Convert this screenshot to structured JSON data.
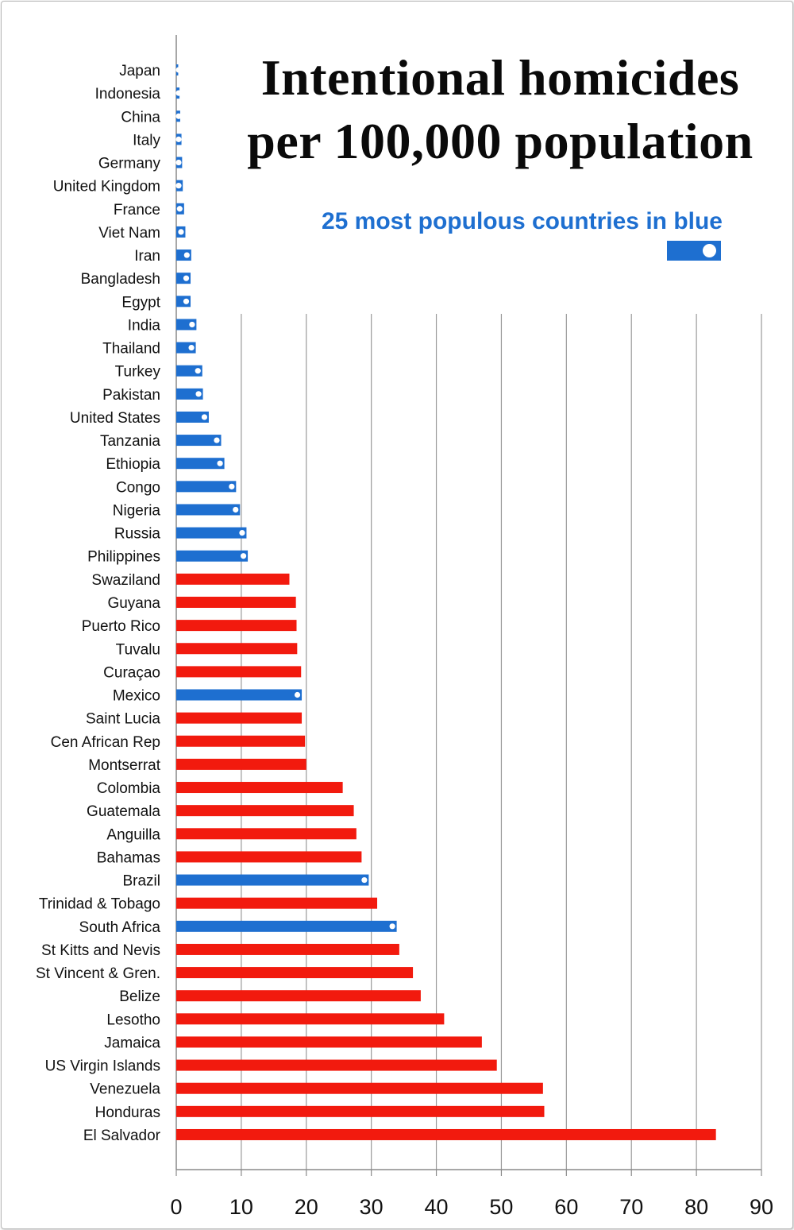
{
  "chart_data": {
    "type": "bar",
    "orientation": "horizontal",
    "title_line1": "Intentional homicides",
    "title_line2": "per 100,000 population",
    "legend_label": "25 most populous countries in blue",
    "xlim": [
      0,
      90
    ],
    "xticks": [
      0,
      10,
      20,
      30,
      40,
      50,
      60,
      70,
      80,
      90
    ],
    "grid": "vertical lines from 10 to 90",
    "colors": {
      "populous": "#1e6fd0",
      "other": "#f21a0e",
      "marker": "#ffffff",
      "grid": "#9a9a9a"
    },
    "categories": [
      "Japan",
      "Indonesia",
      "China",
      "Italy",
      "Germany",
      "United Kingdom",
      "France",
      "Viet Nam",
      "Iran",
      "Bangladesh",
      "Egypt",
      "India",
      "Thailand",
      "Turkey",
      "Pakistan",
      "United States",
      "Tanzania",
      "Ethiopia",
      "Congo",
      "Nigeria",
      "Russia",
      "Philippines",
      "Swaziland",
      "Guyana",
      "Puerto Rico",
      "Tuvalu",
      "Curaçao",
      "Mexico",
      "Saint Lucia",
      "Cen African Rep",
      "Montserrat",
      "Colombia",
      "Guatemala",
      "Anguilla",
      "Bahamas",
      "Brazil",
      "Trinidad & Tobago",
      "South Africa",
      "St Kitts and Nevis",
      "St Vincent & Gren.",
      "Belize",
      "Lesotho",
      "Jamaica",
      "US Virgin Islands",
      "Venezuela",
      "Honduras",
      "El Salvador"
    ],
    "values": [
      0.3,
      0.5,
      0.6,
      0.8,
      0.9,
      1.0,
      1.2,
      1.4,
      2.3,
      2.2,
      2.2,
      3.1,
      3.0,
      4.0,
      4.1,
      5.0,
      6.9,
      7.4,
      9.2,
      9.8,
      10.8,
      11.0,
      17.4,
      18.4,
      18.5,
      18.6,
      19.2,
      19.3,
      19.3,
      19.8,
      20.0,
      25.6,
      27.3,
      27.7,
      28.5,
      29.6,
      30.9,
      33.9,
      34.3,
      36.4,
      37.6,
      41.2,
      47.0,
      49.3,
      56.4,
      56.6,
      83.0
    ],
    "populous": [
      true,
      true,
      true,
      true,
      true,
      true,
      true,
      true,
      true,
      true,
      true,
      true,
      true,
      true,
      true,
      true,
      true,
      true,
      true,
      true,
      true,
      true,
      false,
      false,
      false,
      false,
      false,
      true,
      false,
      false,
      false,
      false,
      false,
      false,
      false,
      true,
      false,
      true,
      false,
      false,
      false,
      false,
      false,
      false,
      false,
      false,
      false
    ]
  }
}
